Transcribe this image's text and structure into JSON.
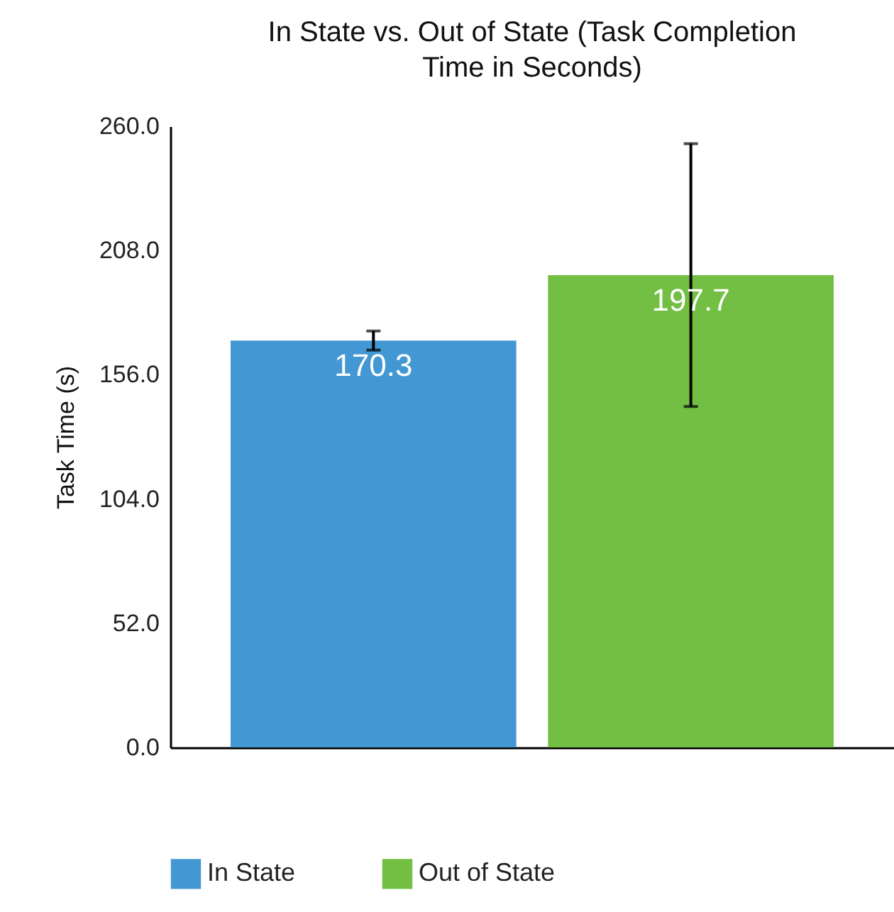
{
  "chart_data": {
    "type": "bar",
    "title": "In State vs. Out of State (Task Completion Time in Seconds)",
    "ylabel": "Task Time (s)",
    "categories": [
      null
    ],
    "series": [
      {
        "name": "In State",
        "color": "#4398d3",
        "values": [
          170.3
        ],
        "errors": [
          4
        ]
      },
      {
        "name": "Out of State",
        "color": "#72bf44",
        "values": [
          197.7
        ],
        "errors": [
          55
        ]
      }
    ],
    "ylim": [
      0,
      260
    ],
    "yticks": [
      {
        "value": 0,
        "label": "0.0"
      },
      {
        "value": 52,
        "label": "52.0"
      },
      {
        "value": 104,
        "label": "104.0"
      },
      {
        "value": 156,
        "label": "156.0"
      },
      {
        "value": 208,
        "label": "208.0"
      },
      {
        "value": 260,
        "label": "260.0"
      }
    ],
    "data_labels": true,
    "legend": "bottom",
    "grid": false,
    "tick_labels": "y"
  }
}
